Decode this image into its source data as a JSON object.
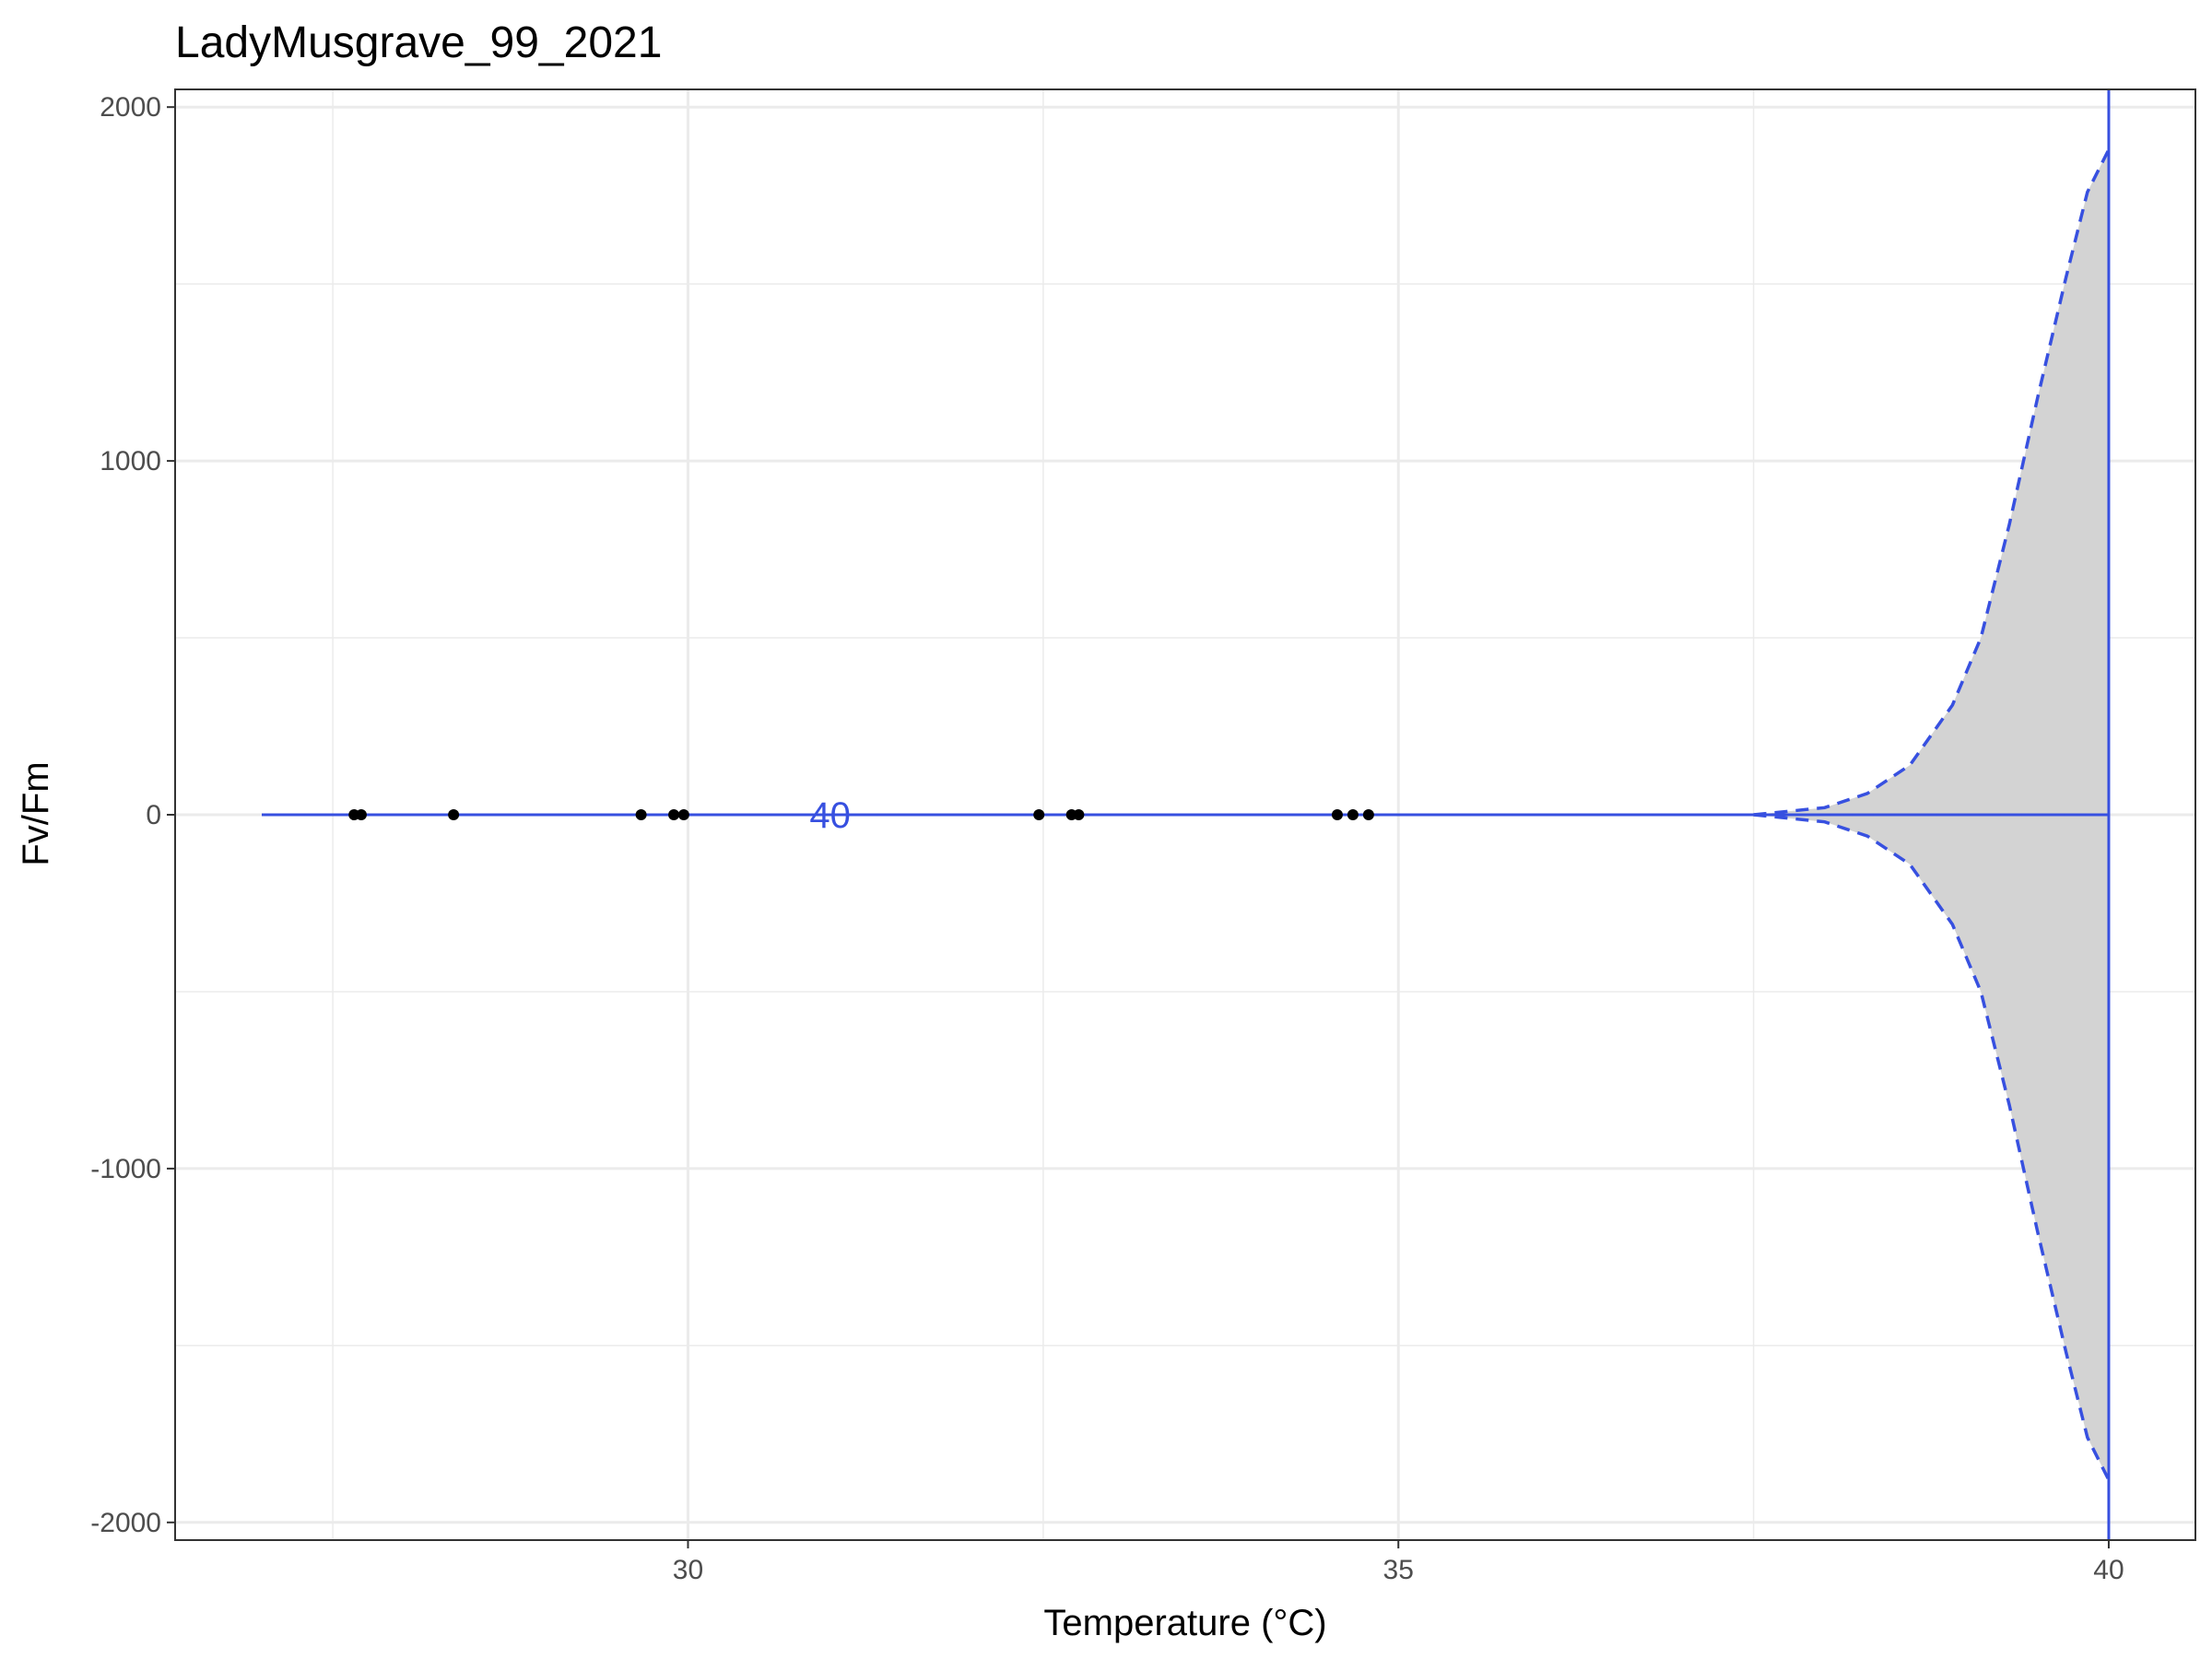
{
  "chart_data": {
    "type": "line",
    "title": "LadyMusgrave_99_2021",
    "xlabel": "Temperature (°C)",
    "ylabel": "Fv/Fm",
    "xlim": [
      26.39,
      40.61
    ],
    "ylim": [
      -2050,
      2050
    ],
    "x_ticks": [
      30,
      35,
      40
    ],
    "x_tick_labels": [
      "30",
      "35",
      "40"
    ],
    "y_ticks": [
      -2000,
      -1000,
      0,
      1000,
      2000
    ],
    "y_tick_labels": [
      "-2000",
      "-1000",
      "0",
      "1000",
      "2000"
    ],
    "grid": true,
    "points": {
      "x": [
        27.65,
        27.7,
        28.35,
        29.67,
        29.9,
        29.97,
        32.47,
        32.7,
        32.75,
        34.57,
        34.68,
        34.79
      ],
      "y": [
        0,
        0,
        0,
        0,
        0,
        0,
        0,
        0,
        0,
        0,
        0,
        0
      ]
    },
    "fit_line": {
      "x": [
        27.0,
        40.0
      ],
      "y": [
        0,
        0
      ]
    },
    "confidence_band": {
      "x": [
        37.5,
        38.0,
        38.3,
        38.6,
        38.9,
        39.1,
        39.3,
        39.5,
        39.7,
        39.85,
        40.0
      ],
      "upper": [
        0,
        20,
        60,
        140,
        310,
        500,
        820,
        1180,
        1520,
        1760,
        1880
      ],
      "lower": [
        0,
        -20,
        -60,
        -140,
        -310,
        -500,
        -820,
        -1180,
        -1520,
        -1760,
        -1880
      ]
    },
    "vline_x": 40,
    "annotation": {
      "text": "40",
      "x": 31.0,
      "y": 0
    },
    "colors": {
      "line": "#3750e0",
      "band": "#d3d3d3",
      "points": "#000000",
      "grid": "#ebebeb"
    }
  }
}
